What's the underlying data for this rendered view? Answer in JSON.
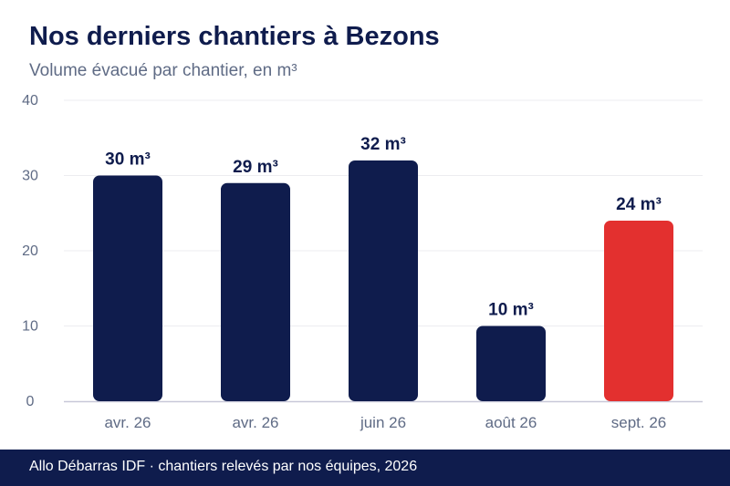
{
  "header": {
    "title": "Nos derniers chantiers à Bezons",
    "subtitle": "Volume évacué par chantier, en m³"
  },
  "footer": {
    "text": "Allo Débarras IDF · chantiers relevés par nos équipes, 2026"
  },
  "colors": {
    "bar": "#0f1c4d",
    "highlight": "#e3302f",
    "grid": "#ececf0",
    "axis": "#c8c8d8",
    "tick_text": "#5f6b85",
    "label_text": "#0f1c4d"
  },
  "chart_data": {
    "type": "bar",
    "title": "Nos derniers chantiers à Bezons",
    "subtitle": "Volume évacué par chantier, en m³",
    "categories": [
      "avr. 26",
      "avr. 26",
      "juin 26",
      "août 26",
      "sept. 26"
    ],
    "values": [
      30,
      29,
      32,
      10,
      24
    ],
    "data_labels": [
      "30 m³",
      "29 m³",
      "32 m³",
      "10 m³",
      "24 m³"
    ],
    "highlight_index": 4,
    "ylim": [
      0,
      40
    ],
    "yticks": [
      0,
      10,
      20,
      30,
      40
    ],
    "ytick_labels": [
      "0",
      "10",
      "20",
      "30",
      "40"
    ],
    "grid": true,
    "legend": "none"
  }
}
